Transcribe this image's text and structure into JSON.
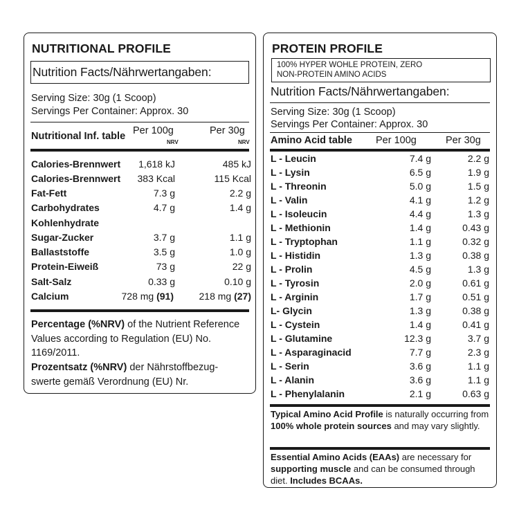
{
  "nutritional": {
    "title": "NUTRITIONAL PROFILE",
    "facts_title": "Nutrition Facts/Nährwertangaben:",
    "serving_size": "Serving Size: 30g (1 Scoop)",
    "servings_per_container": "Servings Per Container: Approx. 30",
    "table_header": {
      "label": "Nutritional Inf. table",
      "col1": "Per 100g",
      "col1_sub": "NRV",
      "col2": "Per 30g",
      "col2_sub": "NRV"
    },
    "rows": [
      {
        "label": "Calories-Brennwert",
        "v1": "1,618 kJ",
        "v2": "485 kJ"
      },
      {
        "label": "Calories-Brennwert",
        "v1": "383 Kcal",
        "v2": "115 Kcal"
      },
      {
        "label": "Fat-Fett",
        "v1": "7.3 g",
        "v2": "2.2 g"
      },
      {
        "label": "Carbohydrates",
        "v1": "4.7 g",
        "v2": "1.4 g"
      },
      {
        "label": "Kohlenhydrate",
        "v1": "",
        "v2": ""
      },
      {
        "label": "Sugar-Zucker",
        "v1": "3.7 g",
        "v2": "1.1 g"
      },
      {
        "label": "Ballaststoffe",
        "v1": "3.5 g",
        "v2": "1.0 g"
      },
      {
        "label": "Protein-Eiweiß",
        "v1": "73 g",
        "v2": "22 g"
      },
      {
        "label": "Salt-Salz",
        "v1": "0.33 g",
        "v2": "0.10 g"
      }
    ],
    "calcium": {
      "label": "Calcium",
      "v1": "728 mg",
      "v1_nrv": "(91)",
      "v2": "218 mg",
      "v2_nrv": "(27)"
    },
    "footnote_en_bold": "Percentage (%NRV)",
    "footnote_en_rest": " of the Nutrient Reference Values according to Regulation (EU) No. 1169/2011.",
    "footnote_de_bold": "Prozentsatz (%NRV)",
    "footnote_de_rest": " der Nährstoffbezug-swerte gemäß Verordnung (EU) Nr."
  },
  "protein": {
    "title": "PROTEIN PROFILE",
    "subtitle_line1": "100% HYPER WOHLE PROTEIN, ZERO",
    "subtitle_line2": "NON-PROTEIN AMINO ACIDS",
    "facts_title": "Nutrition Facts/Nährwertangaben:",
    "serving_size": "Serving Size: 30g (1 Scoop)",
    "servings_per_container": "Servings Per Container: Approx. 30",
    "table_header": {
      "label": "Amino Acid table",
      "col1": "Per 100g",
      "col2": "Per 30g"
    },
    "rows": [
      {
        "label": "L - Leucin",
        "v1": "7.4 g",
        "v2": "2.2 g"
      },
      {
        "label": "L - Lysin",
        "v1": "6.5 g",
        "v2": "1.9 g"
      },
      {
        "label": "L - Threonin",
        "v1": "5.0 g",
        "v2": "1.5 g"
      },
      {
        "label": "L - Valin",
        "v1": "4.1 g",
        "v2": "1.2 g"
      },
      {
        "label": "L - Isoleucin",
        "v1": "4.4 g",
        "v2": "1.3 g"
      },
      {
        "label": "L - Methionin",
        "v1": "1.4 g",
        "v2": "0.43 g"
      },
      {
        "label": "L - Tryptophan",
        "v1": "1.1 g",
        "v2": "0.32 g"
      },
      {
        "label": "L - Histidin",
        "v1": "1.3 g",
        "v2": "0.38 g"
      },
      {
        "label": "L - Prolin",
        "v1": "4.5 g",
        "v2": "1.3 g"
      },
      {
        "label": "L - Tyrosin",
        "v1": "2.0 g",
        "v2": "0.61 g"
      },
      {
        "label": "L - Arginin",
        "v1": "1.7 g",
        "v2": "0.51 g"
      },
      {
        "label": "L- Glycin",
        "v1": "1.3 g",
        "v2": "0.38 g"
      },
      {
        "label": "L - Cystein",
        "v1": "1.4 g",
        "v2": "0.41 g"
      },
      {
        "label": "L - Glutamine",
        "v1": "12.3 g",
        "v2": "3.7 g"
      },
      {
        "label": "L - Asparaginacid",
        "v1": "7.7 g",
        "v2": "2.3 g"
      },
      {
        "label": "L - Serin",
        "v1": "3.6 g",
        "v2": "1.1 g"
      },
      {
        "label": "L - Alanin",
        "v1": "3.6 g",
        "v2": "1.1 g"
      },
      {
        "label": "L - Phenylalanin",
        "v1": "2.1 g",
        "v2": "0.63 g"
      }
    ],
    "note1": {
      "b1": "Typical Amino Acid Profile",
      "t1": " is naturally occurring from ",
      "b2": "100% whole protein sources",
      "t2": " and may vary slightly."
    },
    "note2": {
      "b1": "Essential Amino Acids (EAAs)",
      "t1": " are necessary for ",
      "b2": "supporting muscle",
      "t2": " and can be consumed through diet. ",
      "b3": "Includes BCAAs."
    }
  }
}
